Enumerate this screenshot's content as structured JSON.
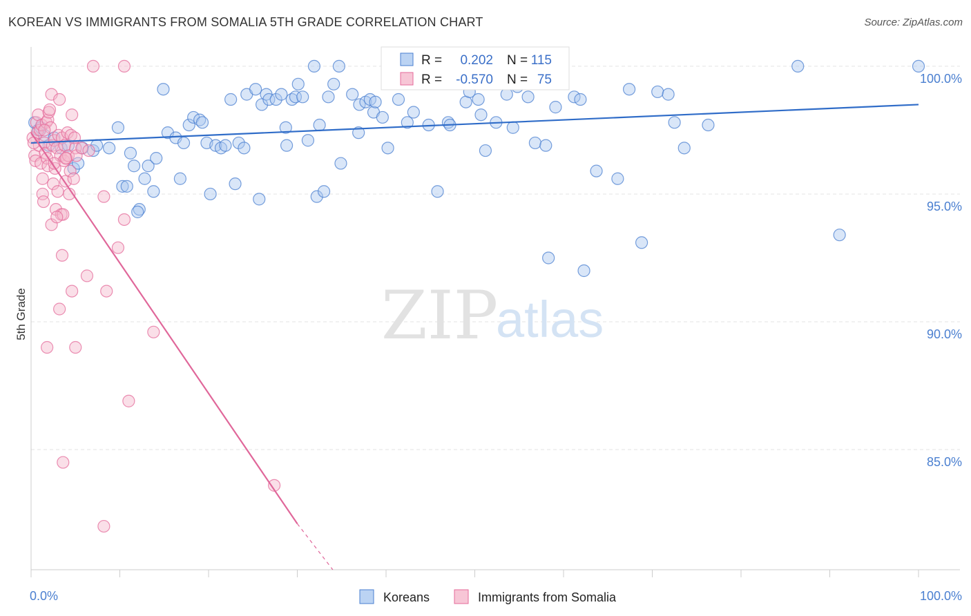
{
  "title": "KOREAN VS IMMIGRANTS FROM SOMALIA 5TH GRADE CORRELATION CHART",
  "source": "Source: ZipAtlas.com",
  "watermark": {
    "zip": "ZIP",
    "atlas": "atlas"
  },
  "colors": {
    "blue": "#4a7fd0",
    "blue_fill": "#aac8f0",
    "blue_line": "#2f6cc8",
    "pink": "#e46a9a",
    "pink_fill": "#f5b8cc",
    "pink_line": "#e0679a",
    "grid": "#e3e3e3",
    "axis": "#cccccc"
  },
  "chart_data": {
    "type": "scatter",
    "title": "KOREAN VS IMMIGRANTS FROM SOMALIA 5TH GRADE CORRELATION CHART",
    "xlabel": "",
    "ylabel": "5th Grade",
    "xlim": [
      0,
      100
    ],
    "ylim": [
      80.3,
      100.7
    ],
    "x_tick_labels": [
      {
        "value": 0,
        "label": "0.0%"
      },
      {
        "value": 100,
        "label": "100.0%"
      }
    ],
    "x_minor_ticks": [
      0,
      10,
      20,
      30,
      40,
      50,
      60,
      70,
      80,
      90,
      100
    ],
    "y_ticks": [
      {
        "value": 100,
        "label": "100.0%"
      },
      {
        "value": 95,
        "label": "95.0%"
      },
      {
        "value": 90,
        "label": "90.0%"
      },
      {
        "value": 85,
        "label": "85.0%"
      }
    ],
    "grid": true,
    "legend_position": "top-center",
    "legend": [
      {
        "r_label": "R =",
        "r_value": "0.202",
        "n_label": "N =",
        "n_value": "115"
      },
      {
        "r_label": "R =",
        "r_value": "-0.570",
        "n_label": "N =",
        "n_value": "75"
      }
    ],
    "series": [
      {
        "name": "Koreans",
        "color": "#4a7fd0",
        "trend": {
          "x0": 0,
          "y0": 97.0,
          "x1": 100,
          "y1": 98.5
        },
        "points": [
          [
            0.4,
            97.8
          ],
          [
            0.8,
            97.5
          ],
          [
            1.1,
            97.6
          ],
          [
            1.5,
            97.3
          ],
          [
            2.0,
            96.9
          ],
          [
            2.6,
            97.2
          ],
          [
            3.4,
            96.8
          ],
          [
            4.2,
            96.9
          ],
          [
            4.8,
            96.0
          ],
          [
            5.3,
            96.2
          ],
          [
            5.8,
            96.8
          ],
          [
            7.0,
            96.7
          ],
          [
            7.4,
            96.9
          ],
          [
            8.8,
            96.8
          ],
          [
            9.8,
            97.6
          ],
          [
            10.3,
            95.3
          ],
          [
            10.8,
            95.3
          ],
          [
            11.2,
            96.6
          ],
          [
            11.6,
            96.1
          ],
          [
            12.2,
            94.4
          ],
          [
            12.0,
            94.3
          ],
          [
            12.8,
            95.6
          ],
          [
            13.2,
            96.1
          ],
          [
            13.8,
            95.1
          ],
          [
            14.1,
            96.4
          ],
          [
            14.9,
            99.1
          ],
          [
            15.4,
            97.4
          ],
          [
            16.3,
            97.2
          ],
          [
            16.8,
            95.6
          ],
          [
            17.2,
            97.0
          ],
          [
            17.8,
            97.7
          ],
          [
            18.3,
            98.0
          ],
          [
            19.0,
            97.9
          ],
          [
            19.3,
            97.8
          ],
          [
            19.8,
            97.0
          ],
          [
            20.2,
            95.0
          ],
          [
            20.8,
            96.9
          ],
          [
            21.4,
            96.8
          ],
          [
            21.9,
            96.9
          ],
          [
            22.5,
            98.7
          ],
          [
            23.0,
            95.4
          ],
          [
            23.4,
            97.0
          ],
          [
            24.0,
            96.8
          ],
          [
            24.3,
            98.9
          ],
          [
            25.3,
            99.1
          ],
          [
            25.7,
            94.8
          ],
          [
            26.0,
            98.5
          ],
          [
            26.5,
            98.9
          ],
          [
            26.8,
            98.7
          ],
          [
            27.6,
            98.7
          ],
          [
            28.2,
            98.9
          ],
          [
            28.7,
            97.6
          ],
          [
            28.8,
            96.9
          ],
          [
            29.4,
            98.7
          ],
          [
            29.8,
            98.8
          ],
          [
            30.1,
            99.3
          ],
          [
            30.6,
            98.8
          ],
          [
            31.2,
            97.1
          ],
          [
            31.9,
            100.0
          ],
          [
            32.2,
            94.9
          ],
          [
            32.5,
            97.7
          ],
          [
            33.0,
            95.1
          ],
          [
            33.5,
            98.8
          ],
          [
            34.1,
            99.3
          ],
          [
            34.7,
            100.0
          ],
          [
            34.9,
            96.2
          ],
          [
            36.2,
            98.9
          ],
          [
            36.9,
            97.4
          ],
          [
            37.0,
            98.5
          ],
          [
            37.7,
            98.6
          ],
          [
            38.2,
            98.7
          ],
          [
            38.6,
            98.2
          ],
          [
            38.8,
            98.6
          ],
          [
            39.6,
            98.0
          ],
          [
            40.2,
            96.8
          ],
          [
            40.4,
            100.0
          ],
          [
            41.0,
            100.0
          ],
          [
            41.4,
            98.7
          ],
          [
            42.4,
            97.8
          ],
          [
            43.1,
            98.2
          ],
          [
            44.8,
            97.7
          ],
          [
            45.8,
            95.1
          ],
          [
            47.0,
            97.8
          ],
          [
            47.2,
            97.7
          ],
          [
            48.1,
            99.6
          ],
          [
            49.0,
            98.6
          ],
          [
            49.4,
            99.0
          ],
          [
            50.4,
            98.7
          ],
          [
            50.7,
            98.1
          ],
          [
            51.2,
            96.7
          ],
          [
            52.4,
            97.8
          ],
          [
            53.6,
            98.9
          ],
          [
            54.3,
            97.6
          ],
          [
            54.8,
            99.2
          ],
          [
            56.0,
            98.8
          ],
          [
            56.8,
            97.0
          ],
          [
            58.0,
            96.9
          ],
          [
            58.3,
            92.5
          ],
          [
            58.9,
            99.4
          ],
          [
            59.1,
            98.4
          ],
          [
            61.2,
            98.8
          ],
          [
            61.9,
            98.7
          ],
          [
            62.3,
            92.0
          ],
          [
            63.7,
            95.9
          ],
          [
            66.1,
            95.6
          ],
          [
            67.4,
            99.1
          ],
          [
            68.8,
            93.1
          ],
          [
            70.6,
            99.0
          ],
          [
            71.8,
            98.9
          ],
          [
            72.5,
            97.8
          ],
          [
            73.6,
            96.8
          ],
          [
            76.3,
            97.7
          ],
          [
            86.4,
            100.0
          ],
          [
            91.1,
            93.4
          ],
          [
            100.0,
            100.0
          ]
        ]
      },
      {
        "name": "Immigrants from Somalia",
        "color": "#e46a9a",
        "trend": {
          "x0": 0,
          "y0": 97.4,
          "x1": 30,
          "y1": 82.1,
          "dashed_to_x": 34,
          "dashed_to_y": 80.3
        },
        "points": [
          [
            0.2,
            97.2
          ],
          [
            0.4,
            96.5
          ],
          [
            0.5,
            96.3
          ],
          [
            0.6,
            97.8
          ],
          [
            0.7,
            97.4
          ],
          [
            0.8,
            98.1
          ],
          [
            0.9,
            96.9
          ],
          [
            1.0,
            97.5
          ],
          [
            1.1,
            96.2
          ],
          [
            1.2,
            97.7
          ],
          [
            1.3,
            95.6
          ],
          [
            1.3,
            95.0
          ],
          [
            1.4,
            94.7
          ],
          [
            1.5,
            97.0
          ],
          [
            1.6,
            96.6
          ],
          [
            1.7,
            97.8
          ],
          [
            1.8,
            96.4
          ],
          [
            1.9,
            97.9
          ],
          [
            1.9,
            96.1
          ],
          [
            2.0,
            98.2
          ],
          [
            2.1,
            98.3
          ],
          [
            2.2,
            97.6
          ],
          [
            2.3,
            98.9
          ],
          [
            2.3,
            93.8
          ],
          [
            2.4,
            96.9
          ],
          [
            2.5,
            95.4
          ],
          [
            2.6,
            97.1
          ],
          [
            2.7,
            96.0
          ],
          [
            2.8,
            94.4
          ],
          [
            2.9,
            96.8
          ],
          [
            3.0,
            95.1
          ],
          [
            3.1,
            97.3
          ],
          [
            3.2,
            98.7
          ],
          [
            3.3,
            96.5
          ],
          [
            3.4,
            94.2
          ],
          [
            3.5,
            97.2
          ],
          [
            3.5,
            92.6
          ],
          [
            3.6,
            94.2
          ],
          [
            3.7,
            96.3
          ],
          [
            3.8,
            96.9
          ],
          [
            3.9,
            95.5
          ],
          [
            4.0,
            96.4
          ],
          [
            4.1,
            97.4
          ],
          [
            4.2,
            96.5
          ],
          [
            4.3,
            95.0
          ],
          [
            4.4,
            95.9
          ],
          [
            4.5,
            97.3
          ],
          [
            4.6,
            98.1
          ],
          [
            4.8,
            95.6
          ],
          [
            5.0,
            96.8
          ],
          [
            5.1,
            96.5
          ],
          [
            5.7,
            96.8
          ],
          [
            6.3,
            91.8
          ],
          [
            6.5,
            96.7
          ],
          [
            7.0,
            100.0
          ],
          [
            8.2,
            94.9
          ],
          [
            8.5,
            91.2
          ],
          [
            9.8,
            92.9
          ],
          [
            10.5,
            94.0
          ],
          [
            10.5,
            100.0
          ],
          [
            11.0,
            86.9
          ],
          [
            13.8,
            89.6
          ],
          [
            27.4,
            83.6
          ],
          [
            5.0,
            89.0
          ],
          [
            1.8,
            89.0
          ],
          [
            3.2,
            90.5
          ],
          [
            4.6,
            91.2
          ],
          [
            3.6,
            84.5
          ],
          [
            8.2,
            82.0
          ],
          [
            2.9,
            94.1
          ],
          [
            1.5,
            97.5
          ],
          [
            2.6,
            96.2
          ],
          [
            3.9,
            96.4
          ],
          [
            0.3,
            97.0
          ],
          [
            4.9,
            97.2
          ]
        ]
      }
    ]
  },
  "bottom_legend": [
    {
      "label": "Koreans"
    },
    {
      "label": "Immigrants from Somalia"
    }
  ]
}
